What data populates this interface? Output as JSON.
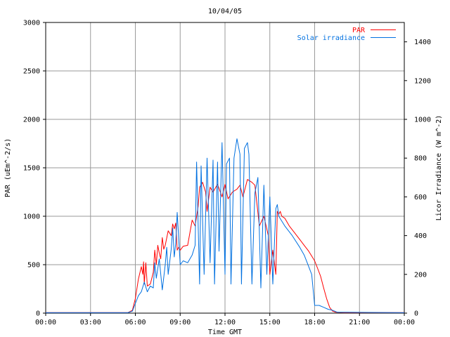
{
  "chart_data": {
    "type": "line",
    "title": "10/04/05",
    "xlabel": "Time GMT",
    "ylabel_left": "PAR (uEm^-2/s)",
    "ylabel_right": "Licor Irradiance (W m^-2)",
    "x_ticks": [
      "00:00",
      "03:00",
      "06:00",
      "09:00",
      "12:00",
      "15:00",
      "18:00",
      "21:00",
      "00:00"
    ],
    "x_range_hours": [
      0,
      24
    ],
    "y_left": {
      "range": [
        0,
        3000
      ],
      "ticks": [
        0,
        500,
        1000,
        1500,
        2000,
        2500,
        3000
      ]
    },
    "y_right": {
      "range": [
        0,
        1500
      ],
      "ticks": [
        0,
        200,
        400,
        600,
        800,
        1000,
        1200,
        1400
      ]
    },
    "grid": true,
    "legend_position": "top-right",
    "series": [
      {
        "name": "PAR",
        "axis": "left",
        "color": "#ff0000",
        "x_hours": [
          0,
          5.5,
          5.8,
          6.0,
          6.2,
          6.4,
          6.5,
          6.55,
          6.6,
          6.7,
          6.8,
          7.0,
          7.2,
          7.3,
          7.4,
          7.5,
          7.6,
          7.7,
          7.8,
          7.9,
          8.0,
          8.2,
          8.4,
          8.5,
          8.6,
          8.7,
          8.8,
          8.9,
          9.0,
          9.2,
          9.5,
          9.8,
          10.0,
          10.2,
          10.3,
          10.5,
          10.7,
          10.8,
          11.0,
          11.2,
          11.5,
          11.8,
          12.0,
          12.2,
          12.5,
          12.8,
          13.0,
          13.2,
          13.5,
          13.8,
          14.0,
          14.3,
          14.6,
          14.9,
          15.0,
          15.2,
          15.4,
          15.5,
          15.6,
          15.7,
          15.8,
          16.0,
          16.3,
          16.6,
          17.0,
          17.3,
          17.6,
          18.0,
          18.2,
          18.4,
          18.6,
          18.8,
          19.0,
          19.2,
          19.4,
          19.6,
          20.0,
          24
        ],
        "values": [
          5,
          5,
          30,
          150,
          350,
          480,
          400,
          530,
          300,
          520,
          280,
          300,
          420,
          650,
          500,
          700,
          620,
          560,
          780,
          660,
          700,
          850,
          800,
          920,
          870,
          930,
          650,
          680,
          650,
          690,
          700,
          960,
          900,
          1100,
          1300,
          1350,
          1250,
          1050,
          1300,
          1250,
          1330,
          1200,
          1330,
          1180,
          1250,
          1280,
          1320,
          1200,
          1380,
          1350,
          1320,
          900,
          1000,
          800,
          400,
          650,
          400,
          1050,
          1020,
          1050,
          1000,
          980,
          900,
          840,
          760,
          700,
          640,
          540,
          460,
          380,
          260,
          150,
          60,
          20,
          10,
          8,
          5,
          5
        ]
      },
      {
        "name": "Solar irradiance",
        "axis": "right",
        "color": "#0070e0",
        "x_hours": [
          0,
          5.5,
          5.8,
          6.0,
          6.2,
          6.4,
          6.6,
          6.8,
          7.0,
          7.2,
          7.3,
          7.4,
          7.6,
          7.8,
          8.0,
          8.1,
          8.2,
          8.4,
          8.5,
          8.6,
          8.7,
          8.8,
          9.0,
          9.2,
          9.5,
          9.8,
          10.0,
          10.1,
          10.3,
          10.4,
          10.6,
          10.8,
          11.0,
          11.2,
          11.3,
          11.5,
          11.6,
          11.8,
          12.0,
          12.1,
          12.3,
          12.4,
          12.6,
          12.8,
          13.0,
          13.1,
          13.3,
          13.5,
          13.6,
          13.8,
          14.0,
          14.2,
          14.4,
          14.6,
          14.8,
          15.0,
          15.2,
          15.4,
          15.5,
          15.6,
          16.0,
          16.5,
          17.0,
          17.3,
          17.5,
          17.8,
          18.0,
          18.3,
          18.6,
          18.9,
          19.2,
          19.5,
          24
        ],
        "values": [
          2,
          2,
          10,
          50,
          90,
          110,
          160,
          110,
          140,
          130,
          260,
          180,
          280,
          120,
          250,
          340,
          200,
          330,
          440,
          290,
          360,
          520,
          250,
          270,
          260,
          300,
          350,
          780,
          150,
          760,
          200,
          800,
          260,
          790,
          150,
          780,
          320,
          880,
          200,
          770,
          800,
          150,
          800,
          900,
          820,
          150,
          850,
          880,
          820,
          150,
          620,
          700,
          130,
          660,
          200,
          600,
          150,
          540,
          560,
          500,
          450,
          400,
          340,
          300,
          260,
          200,
          40,
          40,
          30,
          20,
          15,
          5,
          2
        ]
      }
    ]
  }
}
